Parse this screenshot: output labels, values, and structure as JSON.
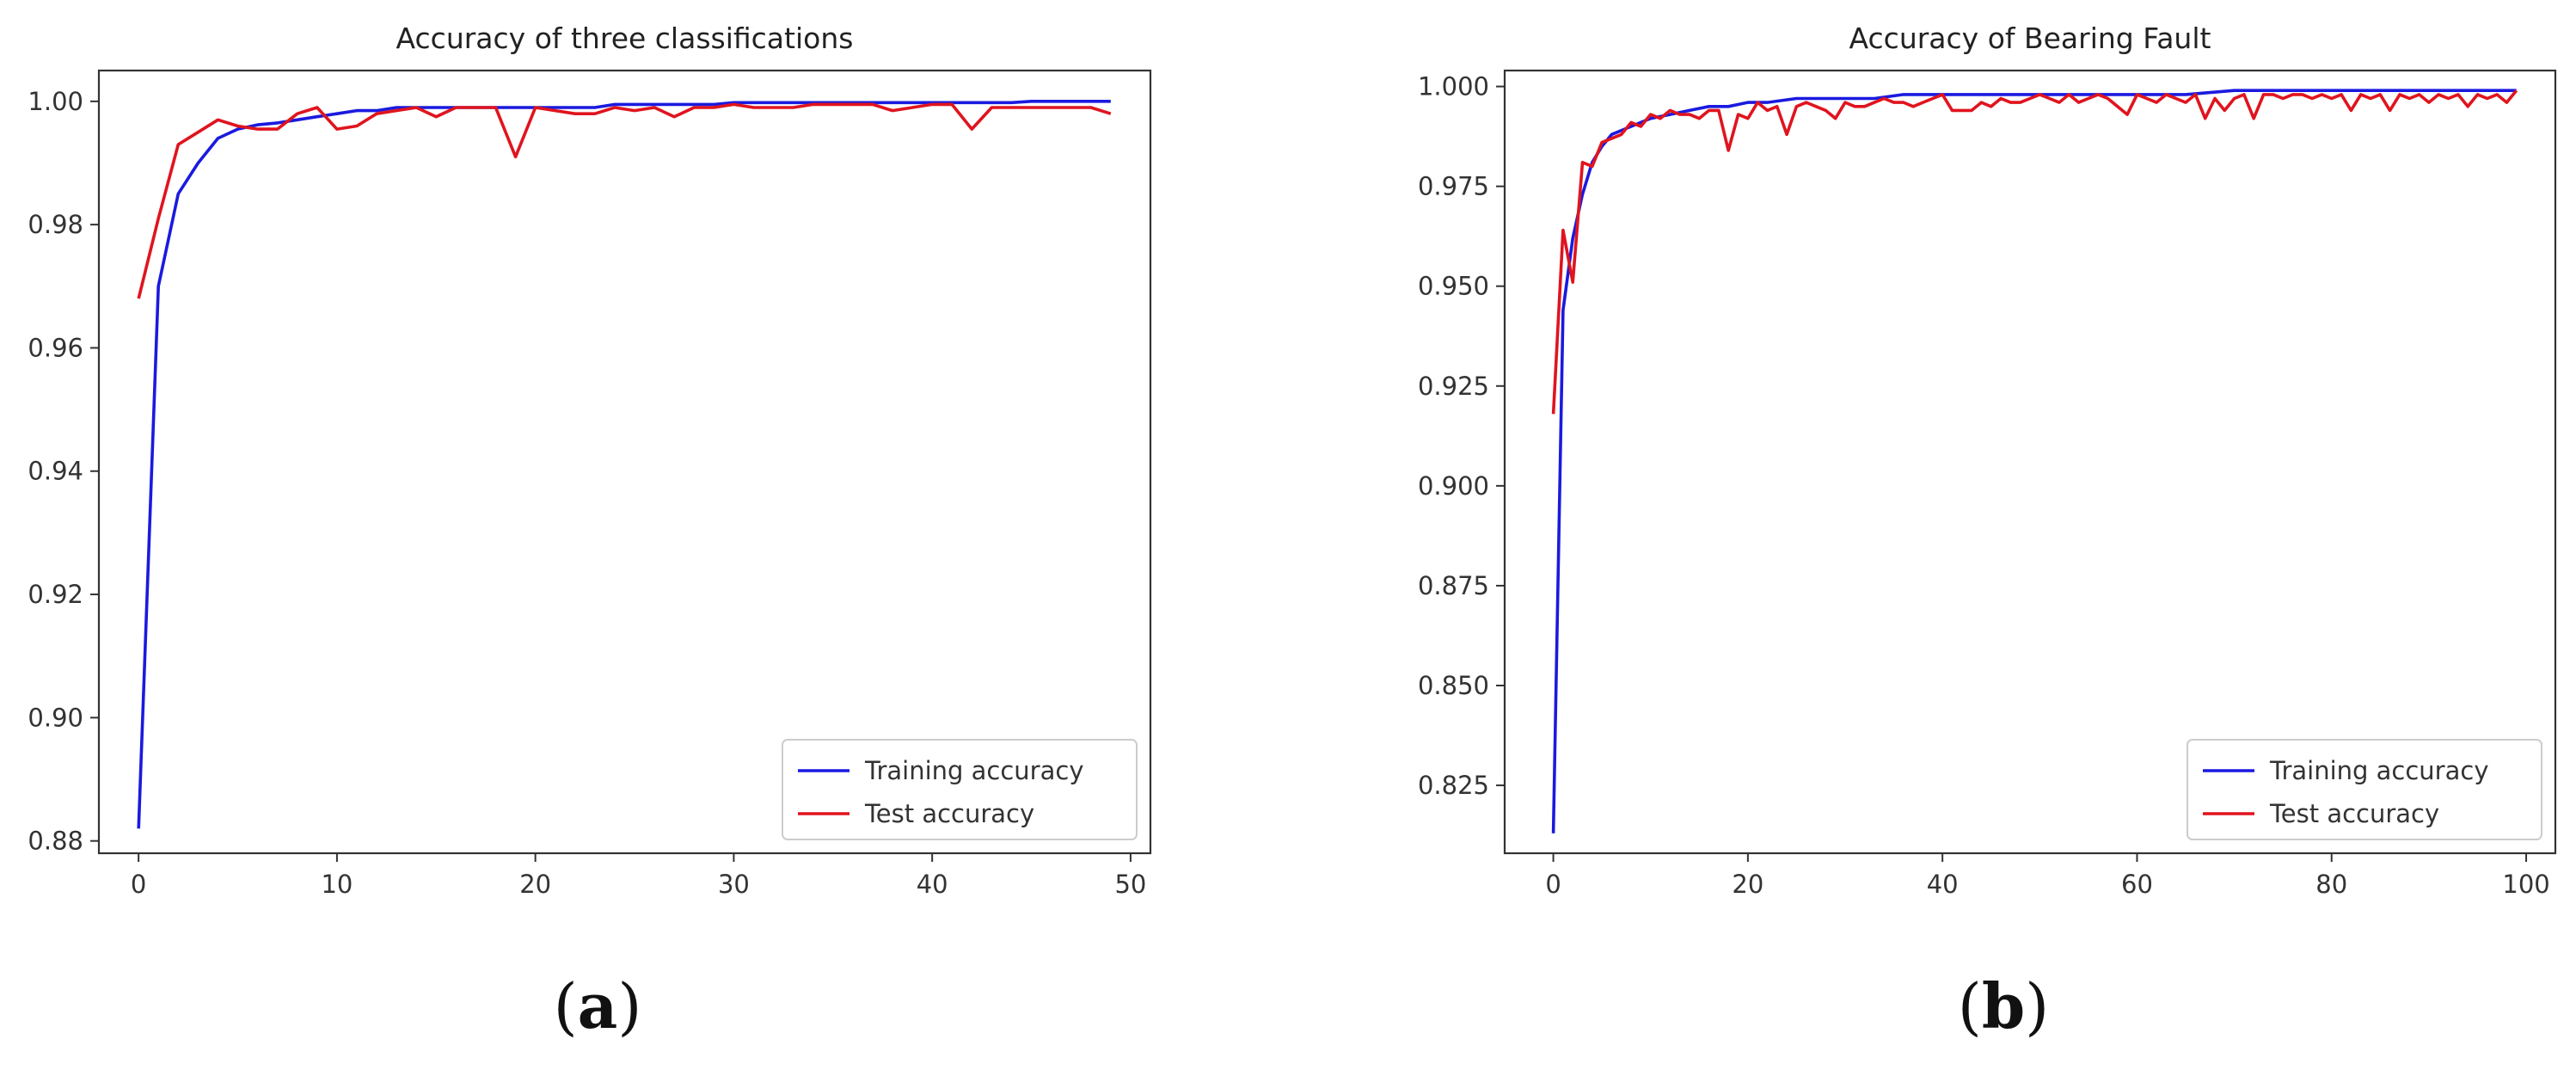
{
  "colors": {
    "training": "#1a1adf",
    "test": "#e0141e",
    "axis": "#333333"
  },
  "chart_data": [
    {
      "type": "line",
      "title": "Accuracy of three classifications",
      "caption_letter": "a",
      "xlabel": "",
      "ylabel": "",
      "xlim": [
        -2,
        51
      ],
      "ylim": [
        0.878,
        1.005
      ],
      "xticks": [
        0,
        10,
        20,
        30,
        40,
        50
      ],
      "yticks": [
        0.88,
        0.9,
        0.92,
        0.94,
        0.96,
        0.98,
        1.0
      ],
      "ytick_labels": [
        "0.88",
        "0.90",
        "0.92",
        "0.94",
        "0.96",
        "0.98",
        "1.00"
      ],
      "legend_position": "lower-right",
      "grid": false,
      "series": [
        {
          "name": "Training accuracy",
          "x": [
            0,
            1,
            2,
            3,
            4,
            5,
            6,
            7,
            8,
            9,
            10,
            11,
            12,
            13,
            14,
            15,
            16,
            17,
            18,
            19,
            20,
            21,
            22,
            23,
            24,
            25,
            26,
            27,
            28,
            29,
            30,
            31,
            32,
            33,
            34,
            35,
            36,
            37,
            38,
            39,
            40,
            41,
            42,
            43,
            44,
            45,
            46,
            47,
            48,
            49
          ],
          "y": [
            0.882,
            0.97,
            0.985,
            0.99,
            0.994,
            0.9955,
            0.9962,
            0.9965,
            0.997,
            0.9975,
            0.998,
            0.9985,
            0.9985,
            0.999,
            0.999,
            0.999,
            0.999,
            0.999,
            0.999,
            0.999,
            0.999,
            0.999,
            0.999,
            0.999,
            0.9995,
            0.9995,
            0.9995,
            0.9995,
            0.9995,
            0.9995,
            0.9998,
            0.9998,
            0.9998,
            0.9998,
            0.9998,
            0.9998,
            0.9998,
            0.9998,
            0.9998,
            0.9998,
            0.9998,
            0.9998,
            0.9998,
            0.9998,
            0.9998,
            1.0,
            1.0,
            1.0,
            1.0,
            1.0
          ]
        },
        {
          "name": "Test accuracy",
          "x": [
            0,
            1,
            2,
            3,
            4,
            5,
            6,
            7,
            8,
            9,
            10,
            11,
            12,
            13,
            14,
            15,
            16,
            17,
            18,
            19,
            20,
            21,
            22,
            23,
            24,
            25,
            26,
            27,
            28,
            29,
            30,
            31,
            32,
            33,
            34,
            35,
            36,
            37,
            38,
            39,
            40,
            41,
            42,
            43,
            44,
            45,
            46,
            47,
            48,
            49
          ],
          "y": [
            0.968,
            0.981,
            0.993,
            0.995,
            0.997,
            0.996,
            0.9955,
            0.9955,
            0.998,
            0.999,
            0.9955,
            0.996,
            0.998,
            0.9985,
            0.999,
            0.9975,
            0.999,
            0.999,
            0.999,
            0.991,
            0.999,
            0.9985,
            0.998,
            0.998,
            0.999,
            0.9985,
            0.999,
            0.9975,
            0.999,
            0.999,
            0.9995,
            0.999,
            0.999,
            0.999,
            0.9995,
            0.9995,
            0.9995,
            0.9995,
            0.9985,
            0.999,
            0.9995,
            0.9995,
            0.9955,
            0.999,
            0.999,
            0.999,
            0.999,
            0.999,
            0.999,
            0.998
          ]
        }
      ]
    },
    {
      "type": "line",
      "title": "Accuracy of Bearing Fault",
      "caption_letter": "b",
      "xlabel": "",
      "ylabel": "",
      "xlim": [
        -5,
        103
      ],
      "ylim": [
        0.808,
        1.004
      ],
      "xticks": [
        0,
        20,
        40,
        60,
        80,
        100
      ],
      "yticks": [
        0.825,
        0.85,
        0.875,
        0.9,
        0.925,
        0.95,
        0.975,
        1.0
      ],
      "ytick_labels": [
        "0.825",
        "0.850",
        "0.875",
        "0.900",
        "0.925",
        "0.950",
        "0.975",
        "1.000"
      ],
      "legend_position": "lower-right",
      "grid": false,
      "series": [
        {
          "name": "Training accuracy",
          "x": [
            0,
            1,
            2,
            3,
            4,
            5,
            6,
            8,
            10,
            12,
            14,
            16,
            18,
            20,
            22,
            25,
            28,
            30,
            33,
            36,
            40,
            45,
            50,
            55,
            60,
            65,
            70,
            75,
            80,
            85,
            90,
            95,
            99
          ],
          "y": [
            0.813,
            0.944,
            0.962,
            0.973,
            0.981,
            0.985,
            0.988,
            0.99,
            0.992,
            0.993,
            0.994,
            0.995,
            0.995,
            0.996,
            0.996,
            0.997,
            0.997,
            0.997,
            0.997,
            0.998,
            0.998,
            0.998,
            0.998,
            0.998,
            0.998,
            0.998,
            0.999,
            0.999,
            0.999,
            0.999,
            0.999,
            0.999,
            0.999
          ]
        },
        {
          "name": "Test accuracy",
          "x": [
            0,
            1,
            2,
            3,
            4,
            5,
            6,
            7,
            8,
            9,
            10,
            11,
            12,
            13,
            14,
            15,
            16,
            17,
            18,
            19,
            20,
            21,
            22,
            23,
            24,
            25,
            26,
            27,
            28,
            29,
            30,
            31,
            32,
            33,
            34,
            35,
            36,
            37,
            38,
            39,
            40,
            41,
            42,
            43,
            44,
            45,
            46,
            47,
            48,
            49,
            50,
            51,
            52,
            53,
            54,
            55,
            56,
            57,
            58,
            59,
            60,
            61,
            62,
            63,
            64,
            65,
            66,
            67,
            68,
            69,
            70,
            71,
            72,
            73,
            74,
            75,
            76,
            77,
            78,
            79,
            80,
            81,
            82,
            83,
            84,
            85,
            86,
            87,
            88,
            89,
            90,
            91,
            92,
            93,
            94,
            95,
            96,
            97,
            98,
            99
          ],
          "y": [
            0.918,
            0.964,
            0.951,
            0.981,
            0.98,
            0.986,
            0.987,
            0.988,
            0.991,
            0.99,
            0.993,
            0.992,
            0.994,
            0.993,
            0.993,
            0.992,
            0.994,
            0.994,
            0.984,
            0.993,
            0.992,
            0.996,
            0.994,
            0.995,
            0.988,
            0.995,
            0.996,
            0.995,
            0.994,
            0.992,
            0.996,
            0.995,
            0.995,
            0.996,
            0.997,
            0.996,
            0.996,
            0.995,
            0.996,
            0.997,
            0.998,
            0.994,
            0.994,
            0.994,
            0.996,
            0.995,
            0.997,
            0.996,
            0.996,
            0.997,
            0.998,
            0.997,
            0.996,
            0.998,
            0.996,
            0.997,
            0.998,
            0.997,
            0.995,
            0.993,
            0.998,
            0.997,
            0.996,
            0.998,
            0.997,
            0.996,
            0.998,
            0.992,
            0.997,
            0.994,
            0.997,
            0.998,
            0.992,
            0.998,
            0.998,
            0.997,
            0.998,
            0.998,
            0.997,
            0.998,
            0.997,
            0.998,
            0.994,
            0.998,
            0.997,
            0.998,
            0.994,
            0.998,
            0.997,
            0.998,
            0.996,
            0.998,
            0.997,
            0.998,
            0.995,
            0.998,
            0.997,
            0.998,
            0.996,
            0.999
          ]
        }
      ]
    }
  ]
}
